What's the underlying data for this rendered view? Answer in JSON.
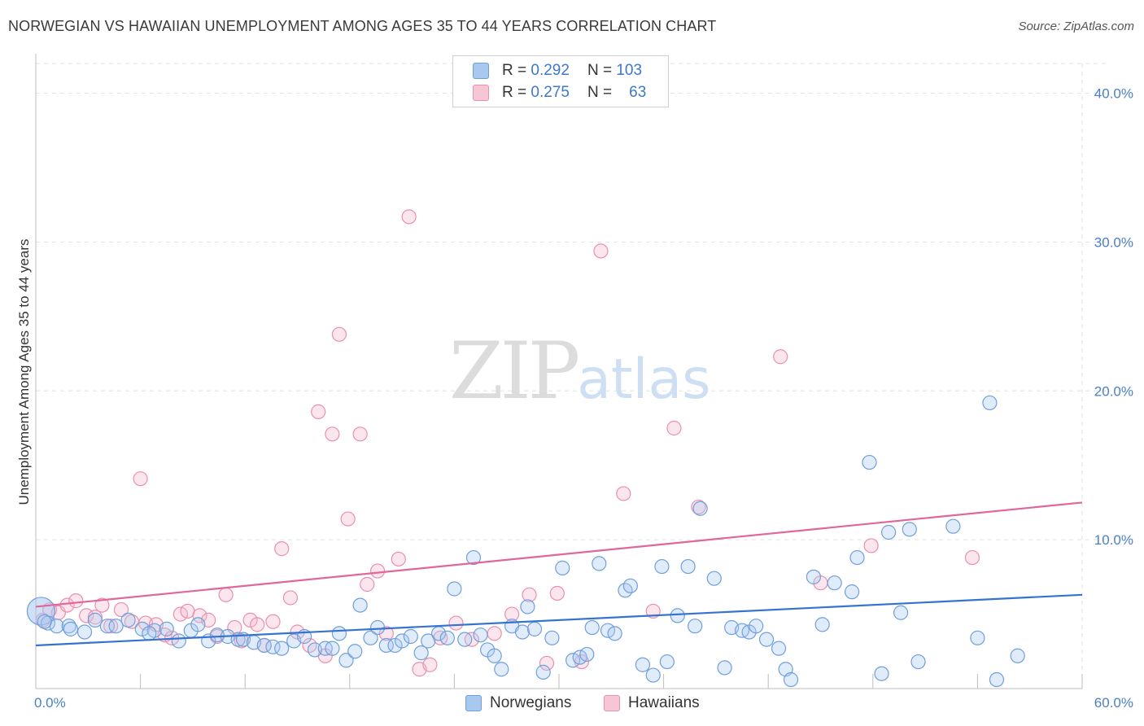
{
  "header": {
    "title": "NORWEGIAN VS HAWAIIAN UNEMPLOYMENT AMONG AGES 35 TO 44 YEARS CORRELATION CHART",
    "source": "Source: ZipAtlas.com"
  },
  "watermark": {
    "zip": "ZIP",
    "atlas": "atlas"
  },
  "legend_top": {
    "rows": [
      {
        "r_label": "R =",
        "r_value": "0.292",
        "n_label": "N =",
        "n_value": "103"
      },
      {
        "r_label": "R =",
        "r_value": "0.275",
        "n_label": "N =",
        "n_value": "63"
      }
    ]
  },
  "legend_bottom": {
    "items": [
      "Norwegians",
      "Hawaiians"
    ]
  },
  "colors": {
    "norwegians_fill": "#a9c8f0",
    "norwegians_stroke": "#6f9fdc",
    "norwegians_line": "#3573d1",
    "hawaiians_fill": "#f7b8cc",
    "hawaiians_stroke": "#ea8fae",
    "hawaiians_line": "#e0679a",
    "tick_text": "#4a7fc9",
    "grid": "#e2e2e2"
  },
  "chart_data": {
    "type": "scatter",
    "title": "NORWEGIAN VS HAWAIIAN UNEMPLOYMENT AMONG AGES 35 TO 44 YEARS CORRELATION CHART",
    "xlabel": "",
    "ylabel": "Unemployment Among Ages 35 to 44 years",
    "xlim": [
      0,
      60
    ],
    "ylim": [
      0,
      42
    ],
    "x_tick_labels": [
      "0.0%",
      "60.0%"
    ],
    "y_ticks": [
      10,
      20,
      30,
      40
    ],
    "y_tick_labels": [
      "10.0%",
      "20.0%",
      "30.0%",
      "40.0%"
    ],
    "grid": true,
    "legend": "top-center",
    "series": [
      {
        "name": "Norwegians",
        "R": 0.292,
        "N": 103,
        "trend": {
          "x": [
            0,
            60
          ],
          "y": [
            2.9,
            6.3
          ]
        },
        "points": [
          [
            0.3,
            5.2
          ],
          [
            0.7,
            4.4
          ],
          [
            1.2,
            4.2
          ],
          [
            1.9,
            4.2
          ],
          [
            2.8,
            3.8
          ],
          [
            3.4,
            4.6
          ],
          [
            4.1,
            4.2
          ],
          [
            4.6,
            4.2
          ],
          [
            5.3,
            4.6
          ],
          [
            6.1,
            4.0
          ],
          [
            6.8,
            3.9
          ],
          [
            7.5,
            4.0
          ],
          [
            8.2,
            3.2
          ],
          [
            8.9,
            3.9
          ],
          [
            9.3,
            4.3
          ],
          [
            9.9,
            3.2
          ],
          [
            10.4,
            3.6
          ],
          [
            11.0,
            3.5
          ],
          [
            11.6,
            3.3
          ],
          [
            11.9,
            3.3
          ],
          [
            12.5,
            3.1
          ],
          [
            13.1,
            2.9
          ],
          [
            13.6,
            2.8
          ],
          [
            14.1,
            2.7
          ],
          [
            14.8,
            3.2
          ],
          [
            15.4,
            3.5
          ],
          [
            16.0,
            2.6
          ],
          [
            16.6,
            2.7
          ],
          [
            17.0,
            2.7
          ],
          [
            17.4,
            3.7
          ],
          [
            17.8,
            1.9
          ],
          [
            18.3,
            2.5
          ],
          [
            18.6,
            5.6
          ],
          [
            19.2,
            3.4
          ],
          [
            19.6,
            4.1
          ],
          [
            20.1,
            2.9
          ],
          [
            20.6,
            2.9
          ],
          [
            21.0,
            3.2
          ],
          [
            21.5,
            3.5
          ],
          [
            22.1,
            2.4
          ],
          [
            22.5,
            3.2
          ],
          [
            23.1,
            3.7
          ],
          [
            23.6,
            3.4
          ],
          [
            24.0,
            6.7
          ],
          [
            24.6,
            3.3
          ],
          [
            25.1,
            8.8
          ],
          [
            25.5,
            3.6
          ],
          [
            25.9,
            2.6
          ],
          [
            26.3,
            2.2
          ],
          [
            26.7,
            1.3
          ],
          [
            27.3,
            4.2
          ],
          [
            27.9,
            3.8
          ],
          [
            28.2,
            5.5
          ],
          [
            28.6,
            4.0
          ],
          [
            29.1,
            1.1
          ],
          [
            29.6,
            3.4
          ],
          [
            30.2,
            8.1
          ],
          [
            30.8,
            1.9
          ],
          [
            31.2,
            2.1
          ],
          [
            31.6,
            2.3
          ],
          [
            31.9,
            4.1
          ],
          [
            32.3,
            8.4
          ],
          [
            32.8,
            3.9
          ],
          [
            33.2,
            3.7
          ],
          [
            33.8,
            6.6
          ],
          [
            34.1,
            6.9
          ],
          [
            34.8,
            1.6
          ],
          [
            35.4,
            0.9
          ],
          [
            35.9,
            8.2
          ],
          [
            36.2,
            1.8
          ],
          [
            36.8,
            4.9
          ],
          [
            37.4,
            8.2
          ],
          [
            37.8,
            4.2
          ],
          [
            38.1,
            12.1
          ],
          [
            38.9,
            7.4
          ],
          [
            39.5,
            1.4
          ],
          [
            39.9,
            4.1
          ],
          [
            40.5,
            3.9
          ],
          [
            40.9,
            3.8
          ],
          [
            41.3,
            4.2
          ],
          [
            41.9,
            3.3
          ],
          [
            42.6,
            2.7
          ],
          [
            43.0,
            1.3
          ],
          [
            43.3,
            0.6
          ],
          [
            44.6,
            7.5
          ],
          [
            45.1,
            4.3
          ],
          [
            45.8,
            7.1
          ],
          [
            46.8,
            6.5
          ],
          [
            47.1,
            8.8
          ],
          [
            47.8,
            15.2
          ],
          [
            48.5,
            1.0
          ],
          [
            48.9,
            10.5
          ],
          [
            49.6,
            5.1
          ],
          [
            50.1,
            10.7
          ],
          [
            50.6,
            1.8
          ],
          [
            52.6,
            10.9
          ],
          [
            54.0,
            3.4
          ],
          [
            54.7,
            19.2
          ],
          [
            55.1,
            0.6
          ],
          [
            56.3,
            2.2
          ],
          [
            0.5,
            4.5
          ],
          [
            2.0,
            4.0
          ],
          [
            6.5,
            3.7
          ]
        ]
      },
      {
        "name": "Hawaiians",
        "R": 0.275,
        "N": 63,
        "trend": {
          "x": [
            0,
            60
          ],
          "y": [
            5.5,
            12.5
          ]
        },
        "points": [
          [
            0.4,
            4.6
          ],
          [
            0.8,
            5.3
          ],
          [
            1.3,
            5.1
          ],
          [
            1.8,
            5.6
          ],
          [
            2.3,
            5.9
          ],
          [
            2.9,
            4.9
          ],
          [
            3.4,
            4.8
          ],
          [
            3.8,
            5.6
          ],
          [
            4.3,
            4.2
          ],
          [
            4.9,
            5.3
          ],
          [
            5.5,
            4.5
          ],
          [
            6.0,
            14.1
          ],
          [
            6.3,
            4.4
          ],
          [
            6.9,
            4.3
          ],
          [
            7.4,
            3.6
          ],
          [
            7.8,
            3.4
          ],
          [
            8.3,
            5.0
          ],
          [
            8.7,
            5.2
          ],
          [
            9.4,
            4.9
          ],
          [
            9.9,
            4.6
          ],
          [
            10.4,
            3.5
          ],
          [
            10.9,
            6.3
          ],
          [
            11.4,
            4.1
          ],
          [
            11.8,
            3.2
          ],
          [
            12.3,
            4.6
          ],
          [
            12.7,
            4.3
          ],
          [
            13.1,
            2.9
          ],
          [
            13.6,
            4.5
          ],
          [
            14.1,
            9.4
          ],
          [
            14.6,
            6.1
          ],
          [
            15.0,
            3.8
          ],
          [
            15.7,
            2.9
          ],
          [
            16.2,
            18.6
          ],
          [
            16.6,
            2.2
          ],
          [
            17.0,
            17.1
          ],
          [
            17.4,
            23.8
          ],
          [
            17.9,
            11.4
          ],
          [
            18.6,
            17.1
          ],
          [
            19.0,
            7.0
          ],
          [
            19.6,
            7.9
          ],
          [
            20.1,
            3.7
          ],
          [
            20.8,
            8.7
          ],
          [
            21.4,
            31.7
          ],
          [
            22.0,
            1.3
          ],
          [
            22.6,
            1.6
          ],
          [
            23.2,
            3.4
          ],
          [
            24.1,
            4.4
          ],
          [
            25.0,
            3.3
          ],
          [
            26.3,
            3.7
          ],
          [
            27.3,
            5.0
          ],
          [
            28.3,
            6.3
          ],
          [
            29.3,
            1.7
          ],
          [
            29.9,
            6.4
          ],
          [
            31.3,
            1.8
          ],
          [
            32.4,
            29.4
          ],
          [
            33.7,
            13.1
          ],
          [
            35.4,
            5.2
          ],
          [
            36.6,
            17.5
          ],
          [
            38.0,
            12.2
          ],
          [
            42.7,
            22.3
          ],
          [
            45.0,
            7.1
          ],
          [
            47.9,
            9.6
          ],
          [
            53.7,
            8.8
          ]
        ]
      }
    ]
  }
}
